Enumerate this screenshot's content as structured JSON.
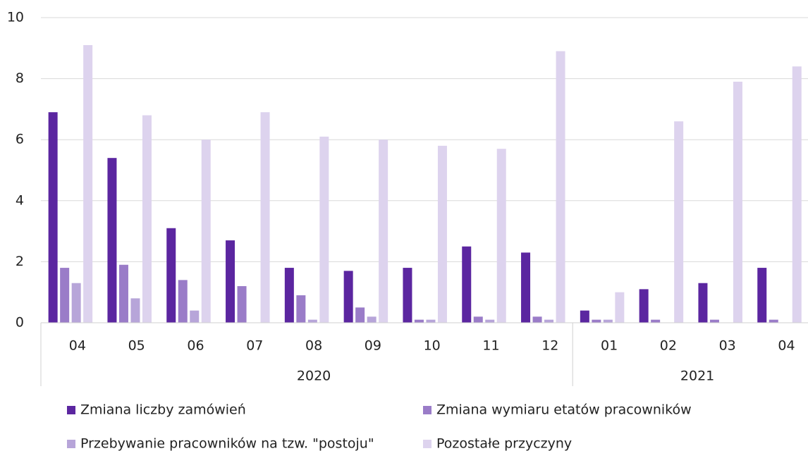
{
  "chart_data": {
    "type": "bar",
    "groups": [
      {
        "label": "2020",
        "categories": [
          "04",
          "05",
          "06",
          "07",
          "08",
          "09",
          "10",
          "11",
          "12"
        ]
      },
      {
        "label": "2021",
        "categories": [
          "01",
          "02",
          "03",
          "04"
        ]
      }
    ],
    "series": [
      {
        "name": "Zmiana liczby zamówień",
        "color": "#5b26a0",
        "values": [
          6.9,
          5.4,
          3.1,
          2.7,
          1.8,
          1.7,
          1.8,
          2.5,
          2.3,
          0.4,
          1.1,
          1.3,
          1.8
        ]
      },
      {
        "name": "Zmiana wymiaru etatów pracowników",
        "color": "#9a7cc8",
        "values": [
          1.8,
          1.9,
          1.4,
          1.2,
          0.9,
          0.5,
          0.1,
          0.2,
          0.2,
          0.1,
          0.1,
          0.1,
          0.1
        ]
      },
      {
        "name": "Przebywanie pracowników na tzw. \"postoju\"",
        "color": "#b7a5d9",
        "values": [
          1.3,
          0.8,
          0.4,
          0,
          0.1,
          0.2,
          0.1,
          0.1,
          0.1,
          0.1,
          0,
          0,
          0
        ]
      },
      {
        "name": "Pozostałe przyczyny",
        "color": "#ddd3ee",
        "values": [
          9.1,
          6.8,
          6.0,
          6.9,
          6.1,
          6.0,
          5.8,
          5.7,
          8.9,
          1.0,
          6.6,
          7.9,
          8.4
        ]
      }
    ],
    "ylim": [
      0,
      10
    ],
    "yticks": [
      0,
      2,
      4,
      6,
      8,
      10
    ],
    "grid": true
  }
}
